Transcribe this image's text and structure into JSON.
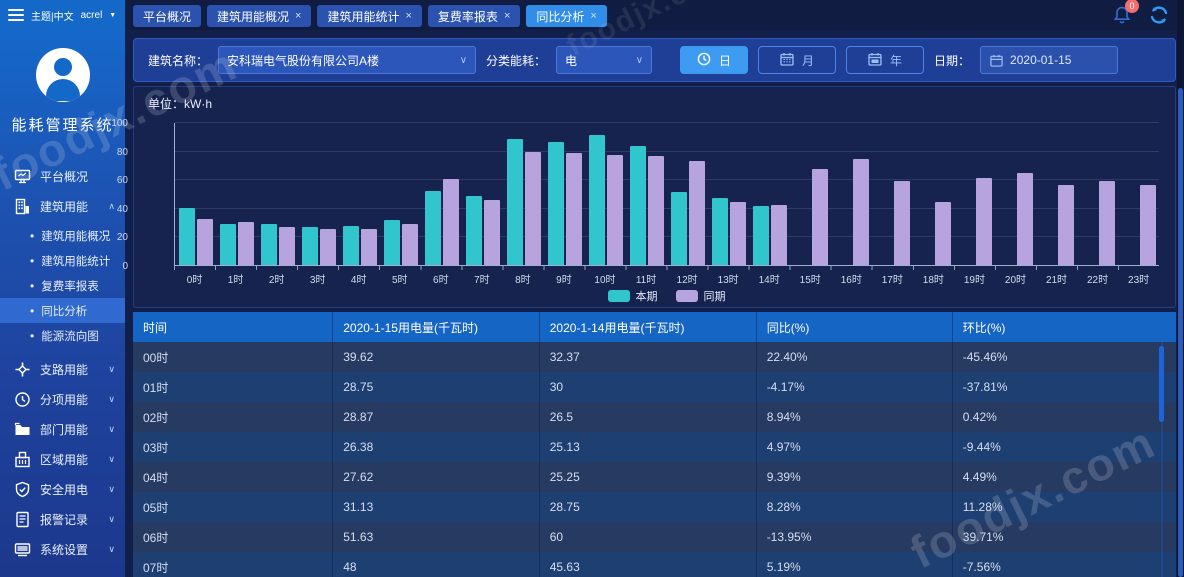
{
  "topbar": {
    "theme_label": "主题|中文",
    "user": "acrel",
    "tabs": [
      {
        "label": "平台概况",
        "closable": false,
        "active": false
      },
      {
        "label": "建筑用能概况",
        "closable": true,
        "active": false
      },
      {
        "label": "建筑用能统计",
        "closable": true,
        "active": false
      },
      {
        "label": "复费率报表",
        "closable": true,
        "active": false
      },
      {
        "label": "同比分析",
        "closable": true,
        "active": true
      }
    ],
    "notification_count": "0"
  },
  "sidebar": {
    "app_title": "能耗管理系统",
    "menu": [
      {
        "label": "平台概况",
        "icon": "platform-icon",
        "has_children": false,
        "expanded": false,
        "children": []
      },
      {
        "label": "建筑用能",
        "icon": "building-icon",
        "has_children": true,
        "expanded": true,
        "children": [
          {
            "label": "建筑用能概况",
            "active": false
          },
          {
            "label": "建筑用能统计",
            "active": false
          },
          {
            "label": "复费率报表",
            "active": false
          },
          {
            "label": "同比分析",
            "active": true
          },
          {
            "label": "能源流向图",
            "active": false
          }
        ]
      },
      {
        "label": "支路用能",
        "icon": "branch-icon",
        "has_children": true,
        "expanded": false,
        "children": []
      },
      {
        "label": "分项用能",
        "icon": "category-icon",
        "has_children": true,
        "expanded": false,
        "children": []
      },
      {
        "label": "部门用能",
        "icon": "department-icon",
        "has_children": true,
        "expanded": false,
        "children": []
      },
      {
        "label": "区域用能",
        "icon": "region-icon",
        "has_children": true,
        "expanded": false,
        "children": []
      },
      {
        "label": "安全用电",
        "icon": "safety-icon",
        "has_children": true,
        "expanded": false,
        "children": []
      },
      {
        "label": "报警记录",
        "icon": "alarm-icon",
        "has_children": true,
        "expanded": false,
        "children": []
      },
      {
        "label": "系统设置",
        "icon": "settings-icon",
        "has_children": true,
        "expanded": false,
        "children": []
      }
    ]
  },
  "filters": {
    "building_label": "建筑名称：",
    "building_value": "安科瑞电气股份有限公司A楼",
    "energy_label": "分类能耗：",
    "energy_value": "电",
    "period_buttons": [
      {
        "label": "日",
        "icon": "clock-icon",
        "active": true
      },
      {
        "label": "月",
        "icon": "calendar-icon",
        "active": false
      },
      {
        "label": "年",
        "icon": "calendar-year-icon",
        "active": false
      }
    ],
    "date_label": "日期：",
    "date_value": "2020-01-15"
  },
  "chart": {
    "unit_label": "单位：kW·h",
    "chart_data": {
      "type": "bar",
      "categories": [
        "0时",
        "1时",
        "2时",
        "3时",
        "4时",
        "5时",
        "6时",
        "7时",
        "8时",
        "9时",
        "10时",
        "11时",
        "12时",
        "13时",
        "14时",
        "15时",
        "16时",
        "17时",
        "18时",
        "19时",
        "20时",
        "21时",
        "22时",
        "23时"
      ],
      "series": [
        {
          "name": "本期",
          "color": "#31c6ce",
          "values": [
            39.62,
            28.75,
            28.87,
            26.38,
            27.62,
            31.13,
            51.63,
            48,
            88,
            86,
            91,
            83,
            51,
            47,
            41,
            null,
            null,
            null,
            null,
            null,
            null,
            null,
            null,
            null
          ]
        },
        {
          "name": "同期",
          "color": "#b7a3de",
          "values": [
            32.37,
            30,
            26.5,
            25.13,
            25.25,
            28.75,
            60,
            45.63,
            79,
            78,
            77,
            76,
            73,
            44,
            42,
            67,
            74,
            59,
            44,
            61,
            64,
            56,
            59,
            56
          ]
        }
      ],
      "title": "",
      "xlabel": "",
      "ylabel": "单位：kW·h",
      "ylim": [
        0,
        100
      ],
      "yticks": [
        0,
        20,
        40,
        60,
        80,
        100
      ],
      "grid": true,
      "legend_position": "bottom"
    }
  },
  "table": {
    "headers": [
      "时间",
      "2020-1-15用电量(千瓦时)",
      "2020-1-14用电量(千瓦时)",
      "同比(%)",
      "环比(%)"
    ],
    "rows": [
      [
        "00时",
        "39.62",
        "32.37",
        "22.40%",
        "-45.46%"
      ],
      [
        "01时",
        "28.75",
        "30",
        "-4.17%",
        "-37.81%"
      ],
      [
        "02时",
        "28.87",
        "26.5",
        "8.94%",
        "0.42%"
      ],
      [
        "03时",
        "26.38",
        "25.13",
        "4.97%",
        "-9.44%"
      ],
      [
        "04时",
        "27.62",
        "25.25",
        "9.39%",
        "4.49%"
      ],
      [
        "05时",
        "31.13",
        "28.75",
        "8.28%",
        "11.28%"
      ],
      [
        "06时",
        "51.63",
        "60",
        "-13.95%",
        "39.71%"
      ],
      [
        "07时",
        "48",
        "45.63",
        "5.19%",
        "-7.56%"
      ]
    ]
  },
  "colors": {
    "series_current": "#31c6ce",
    "series_previous": "#b7a3de",
    "tab_active": "#318ee8",
    "table_header": "#1565c4",
    "badge_red": "#f56c6c",
    "sidebar_active": "#3069cf"
  },
  "watermark": "foodjx.com"
}
